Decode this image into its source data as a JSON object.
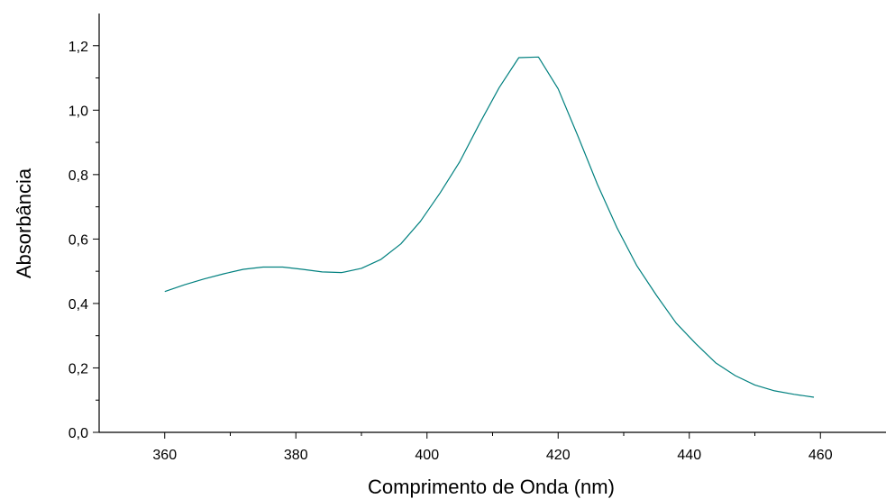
{
  "chart_data": {
    "type": "line",
    "title": "",
    "xlabel": "Comprimento de Onda (nm)",
    "ylabel": "Absorbância",
    "xlim": [
      350,
      470
    ],
    "ylim": [
      0,
      1.3
    ],
    "x_ticks": [
      360,
      380,
      400,
      420,
      440,
      460
    ],
    "x_tick_labels": [
      "360",
      "380",
      "400",
      "420",
      "440",
      "460"
    ],
    "y_ticks": [
      0.0,
      0.2,
      0.4,
      0.6,
      0.8,
      1.0,
      1.2
    ],
    "y_tick_labels": [
      "0,0",
      "0,2",
      "0,4",
      "0,6",
      "0,8",
      "1,0",
      "1,2"
    ],
    "grid": false,
    "line_color": "#00807f",
    "series": [
      {
        "x": [
          360,
          363,
          366,
          369,
          372,
          375,
          378,
          381,
          384,
          387,
          390,
          393,
          396,
          399,
          402,
          405,
          408,
          411,
          414,
          417,
          420,
          423,
          426,
          429,
          432,
          435,
          438,
          441,
          444,
          447,
          450,
          453,
          456,
          459
        ],
        "y": [
          0.437,
          0.458,
          0.476,
          0.492,
          0.506,
          0.513,
          0.513,
          0.506,
          0.498,
          0.496,
          0.509,
          0.537,
          0.585,
          0.655,
          0.743,
          0.84,
          0.958,
          1.07,
          1.163,
          1.165,
          1.066,
          0.92,
          0.769,
          0.634,
          0.517,
          0.425,
          0.339,
          0.275,
          0.216,
          0.176,
          0.147,
          0.129,
          0.118,
          0.109
        ]
      }
    ]
  }
}
